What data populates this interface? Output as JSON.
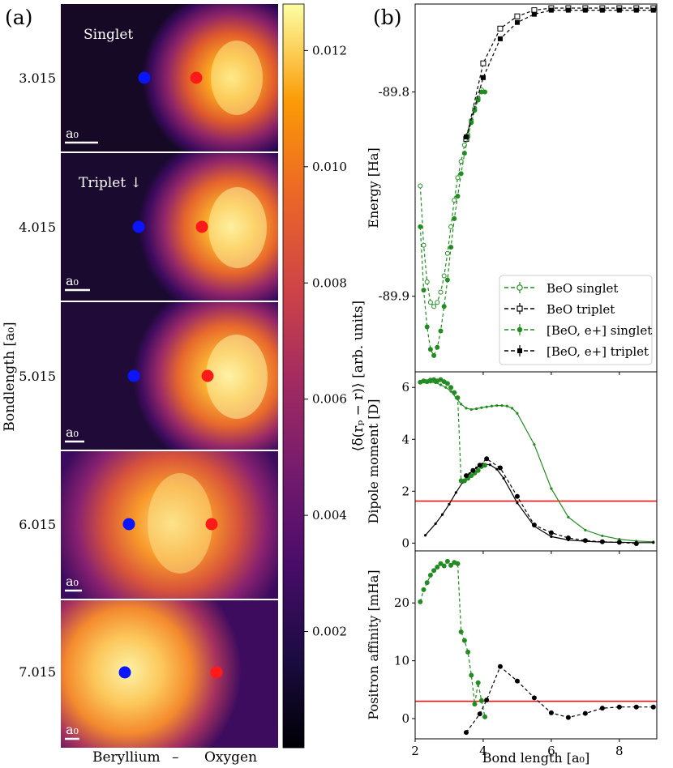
{
  "panel_a": {
    "label": "(a)",
    "ylabel": "Bondlength [a₀]",
    "xlabel_left": "Beryllium",
    "xlabel_dash": "–",
    "xlabel_right": "Oxygen",
    "scale_label": "a₀",
    "row_labels": [
      "3.015",
      "4.015",
      "5.015",
      "6.015",
      "7.015"
    ],
    "state_labels": [
      "Singlet",
      "Triplet ↓"
    ],
    "colors": {
      "beryllium": "#0a14ff",
      "oxygen": "#ff1a1a"
    },
    "colorbar": {
      "label": "⟨δ(rₚ − r)⟩ [arb. units]",
      "ticks": [
        "0.002",
        "0.004",
        "0.006",
        "0.008",
        "0.010",
        "0.012"
      ],
      "tick_values": [
        0.002,
        0.004,
        0.006,
        0.008,
        0.01,
        0.012
      ],
      "range": [
        0.0,
        0.0128
      ]
    }
  },
  "panel_b": {
    "label": "(b)"
  },
  "chart_data": [
    {
      "type": "line",
      "title": "",
      "xlabel": "",
      "ylabel": "Energy [Ha]",
      "xlim": [
        2.0,
        9.1
      ],
      "ylim": [
        -89.937,
        -89.757
      ],
      "yticks": [
        "-89.8",
        "-89.9"
      ],
      "ytick_values": [
        -89.8,
        -89.9
      ],
      "legend": {
        "placement": "lower-right",
        "entries": [
          "BeO singlet",
          "BeO triplet",
          "[BeO, e+] singlet",
          "[BeO, e+] triplet"
        ]
      },
      "series": [
        {
          "name": "BeO singlet",
          "color": "#228b22",
          "style": "dashed",
          "marker": "open-circle",
          "x": [
            2.15,
            2.25,
            2.35,
            2.45,
            2.55,
            2.65,
            2.75,
            2.85,
            2.95,
            3.05,
            3.15,
            3.25,
            3.35,
            3.45,
            3.55,
            3.65,
            3.75,
            3.85,
            3.95
          ],
          "y": [
            -89.846,
            -89.875,
            -89.893,
            -89.903,
            -89.905,
            -89.903,
            -89.898,
            -89.89,
            -89.879,
            -89.866,
            -89.853,
            -89.842,
            -89.834,
            -89.826,
            -89.821,
            -89.814,
            -89.808,
            -89.803,
            -89.799
          ]
        },
        {
          "name": "BeO triplet",
          "color": "#000000",
          "style": "dashed",
          "marker": "open-square",
          "x": [
            3.5,
            4.0,
            4.5,
            5.0,
            5.5,
            6.0,
            6.5,
            7.0,
            7.5,
            8.0,
            8.5,
            9.0
          ],
          "y": [
            -89.823,
            -89.786,
            -89.769,
            -89.763,
            -89.76,
            -89.759,
            -89.759,
            -89.759,
            -89.759,
            -89.759,
            -89.759,
            -89.759
          ]
        },
        {
          "name": "[BeO, e+] singlet",
          "color": "#228b22",
          "style": "dashed",
          "marker": "filled-circle",
          "x": [
            2.15,
            2.25,
            2.35,
            2.45,
            2.55,
            2.65,
            2.75,
            2.85,
            2.95,
            3.05,
            3.15,
            3.25,
            3.35,
            3.45,
            3.55,
            3.65,
            3.75,
            3.85,
            3.95,
            4.05
          ],
          "y": [
            -89.866,
            -89.897,
            -89.915,
            -89.926,
            -89.929,
            -89.925,
            -89.917,
            -89.905,
            -89.892,
            -89.876,
            -89.862,
            -89.851,
            -89.84,
            -89.83,
            -89.822,
            -89.815,
            -89.809,
            -89.804,
            -89.8,
            -89.8
          ]
        },
        {
          "name": "[BeO, e+] triplet",
          "color": "#000000",
          "style": "dashed",
          "marker": "filled-square",
          "x": [
            3.5,
            4.0,
            4.5,
            5.0,
            5.5,
            6.0,
            6.5,
            7.0,
            7.5,
            8.0,
            8.5,
            9.0
          ],
          "y": [
            -89.822,
            -89.793,
            -89.774,
            -89.766,
            -89.762,
            -89.76,
            -89.76,
            -89.76,
            -89.76,
            -89.76,
            -89.76,
            -89.76
          ]
        }
      ]
    },
    {
      "type": "line",
      "title": "",
      "xlabel": "",
      "ylabel": "Dipole moment [D]",
      "xlim": [
        2.0,
        9.1
      ],
      "ylim": [
        -0.3,
        6.6
      ],
      "yticks": [
        "0",
        "2",
        "4",
        "6"
      ],
      "ytick_values": [
        0,
        2,
        4,
        6
      ],
      "reference_line": {
        "y": 1.62,
        "color": "#ff0000"
      },
      "series": [
        {
          "name": "BeO singlet",
          "color": "#228b22",
          "style": "solid",
          "marker": "small-dot",
          "x": [
            2.15,
            2.3,
            2.45,
            2.6,
            2.75,
            2.9,
            3.05,
            3.2,
            3.35,
            3.5,
            3.65,
            3.8,
            3.95,
            4.1,
            4.25,
            4.4,
            4.55,
            4.7,
            4.85,
            5.0,
            5.5,
            6.0,
            6.5,
            7.0,
            7.5,
            8.0,
            8.5,
            9.0
          ],
          "y": [
            6.18,
            6.2,
            6.2,
            6.18,
            6.1,
            6.0,
            5.85,
            5.6,
            5.35,
            5.2,
            5.15,
            5.18,
            5.22,
            5.25,
            5.28,
            5.3,
            5.3,
            5.28,
            5.2,
            5.0,
            3.8,
            2.1,
            1.0,
            0.5,
            0.28,
            0.15,
            0.08,
            0.05
          ]
        },
        {
          "name": "BeO triplet",
          "color": "#000000",
          "style": "solid",
          "marker": "small-dot",
          "x": [
            2.3,
            2.6,
            2.8,
            3.0,
            3.2,
            3.4,
            3.6,
            3.8,
            4.0,
            4.2,
            4.4,
            4.6,
            5.0,
            5.5,
            6.0,
            6.5,
            7.0,
            7.5,
            8.0,
            8.5,
            9.0
          ],
          "y": [
            0.3,
            0.75,
            1.1,
            1.5,
            1.95,
            2.35,
            2.68,
            2.9,
            3.05,
            3.02,
            2.85,
            2.5,
            1.55,
            0.65,
            0.25,
            0.12,
            0.07,
            0.04,
            0.03,
            0.02,
            0.02
          ]
        },
        {
          "name": "[BeO, e+] singlet",
          "color": "#228b22",
          "style": "dashed",
          "marker": "filled-circle",
          "x": [
            2.15,
            2.25,
            2.35,
            2.45,
            2.55,
            2.65,
            2.75,
            2.85,
            2.95,
            3.05,
            3.15,
            3.25,
            3.35,
            3.45,
            3.55,
            3.65,
            3.75,
            3.85,
            3.95,
            4.05
          ],
          "y": [
            6.2,
            6.25,
            6.22,
            6.28,
            6.3,
            6.25,
            6.3,
            6.22,
            6.15,
            6.0,
            5.8,
            5.6,
            2.4,
            2.4,
            2.5,
            2.6,
            2.7,
            2.8,
            2.95,
            3.0
          ]
        },
        {
          "name": "[BeO, e+] triplet",
          "color": "#000000",
          "style": "dashed",
          "marker": "filled-circle",
          "x": [
            3.5,
            3.7,
            3.9,
            4.1,
            4.5,
            5.0,
            5.5,
            6.0,
            6.5,
            7.0,
            7.5,
            8.0,
            8.5
          ],
          "y": [
            2.6,
            2.8,
            3.0,
            3.25,
            2.9,
            1.8,
            0.7,
            0.4,
            0.2,
            0.1,
            0.05,
            0.03,
            -0.02
          ]
        }
      ]
    },
    {
      "type": "line",
      "title": "",
      "xlabel": "Bond length [a₀]",
      "ylabel": "Positron affinity [mHa]",
      "xlim": [
        2.0,
        9.1
      ],
      "xticks": [
        "2",
        "4",
        "6",
        "8"
      ],
      "xtick_values": [
        2,
        4,
        6,
        8
      ],
      "ylim": [
        -3.5,
        29.0
      ],
      "yticks": [
        "0",
        "10",
        "20"
      ],
      "ytick_values": [
        0,
        10,
        20
      ],
      "reference_line": {
        "y": 3.0,
        "color": "#ff0000"
      },
      "series": [
        {
          "name": "[BeO, e+] singlet",
          "color": "#228b22",
          "style": "dashed",
          "marker": "filled-circle",
          "x": [
            2.15,
            2.25,
            2.35,
            2.45,
            2.55,
            2.65,
            2.75,
            2.85,
            2.95,
            3.05,
            3.15,
            3.25,
            3.35,
            3.45,
            3.55,
            3.65,
            3.75,
            3.85,
            3.95,
            4.05
          ],
          "y": [
            20.2,
            22.3,
            23.5,
            24.8,
            25.6,
            26.2,
            26.8,
            26.4,
            27.2,
            26.5,
            27.0,
            26.8,
            15.0,
            13.5,
            11.5,
            7.5,
            2.5,
            6.2,
            3.1,
            0.3
          ]
        },
        {
          "name": "[BeO, e+] triplet",
          "color": "#000000",
          "style": "dashed",
          "marker": "filled-circle",
          "x": [
            3.5,
            3.9,
            4.1,
            4.5,
            5.0,
            5.5,
            6.0,
            6.5,
            7.0,
            7.5,
            8.0,
            8.5,
            9.0
          ],
          "y": [
            -2.4,
            0.8,
            3.2,
            9.0,
            6.5,
            3.6,
            1.0,
            0.2,
            0.9,
            1.8,
            2.0,
            2.0,
            2.0
          ]
        }
      ]
    }
  ]
}
